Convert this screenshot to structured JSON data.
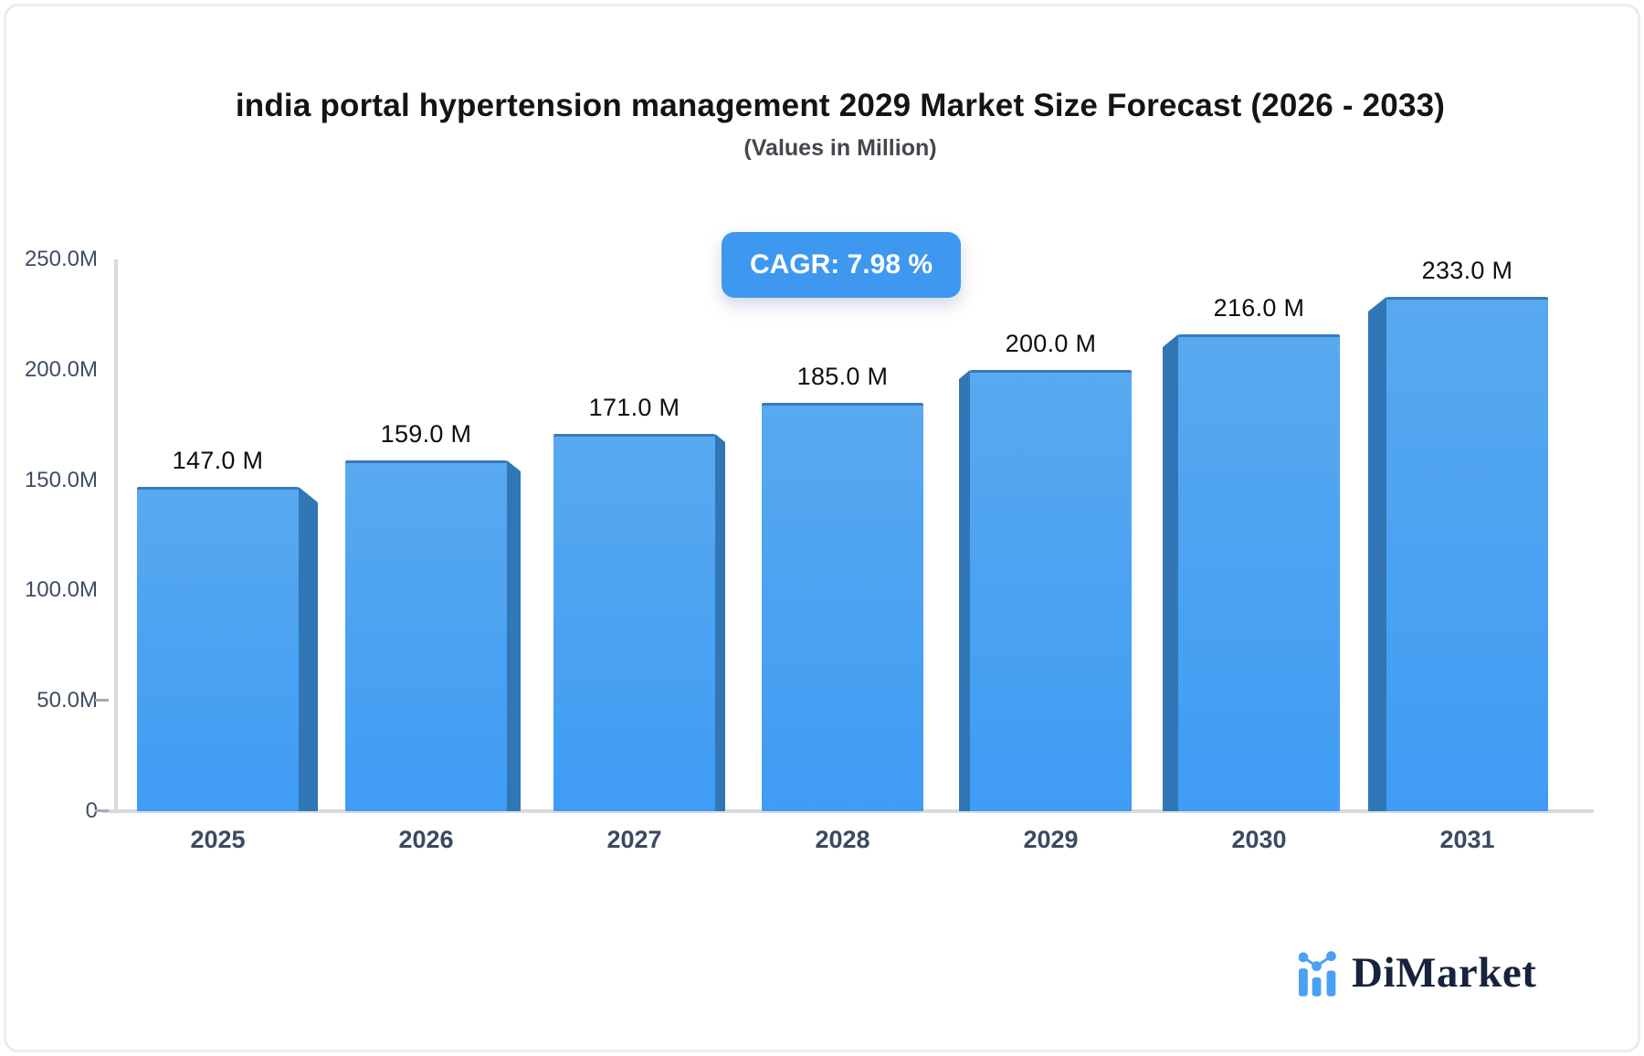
{
  "header": {
    "title": "india portal hypertension management 2029 Market Size Forecast (2026 - 2033)",
    "subtitle": "(Values in Million)",
    "cagr_label": "CAGR: 7.98 %"
  },
  "chart_data": {
    "type": "bar",
    "title": "india portal hypertension management 2029 Market Size Forecast (2026 - 2033)",
    "subtitle": "(Values in Million)",
    "unit": "Million",
    "categories": [
      "2025",
      "2026",
      "2027",
      "2028",
      "2029",
      "2030",
      "2031"
    ],
    "values": [
      147,
      159,
      171,
      185,
      200,
      216,
      233
    ],
    "value_labels": [
      "147.0 M",
      "159.0 M",
      "171.0 M",
      "185.0 M",
      "200.0 M",
      "216.0 M",
      "233.0 M"
    ],
    "cagr_percent": 7.98,
    "ylim": [
      0,
      250
    ],
    "ytick_values": [
      250,
      200,
      150,
      100,
      50,
      0
    ],
    "ytick_labels": [
      "250.0M",
      "200.0M",
      "150.0M",
      "100.0M",
      "50.0M",
      "0"
    ],
    "grid": false,
    "legend": "none"
  },
  "footer": {
    "logo_text": "DiMarket"
  },
  "colors": {
    "accent": "#3f98ef",
    "bar_face_top": "#58a9ef",
    "bar_face_bottom": "#3f9cf4",
    "bar_side": "#3176b6",
    "axis_line": "#d9dae0",
    "axis_text": "#3e4d63",
    "value_text": "#0e0e0e",
    "logo_navy": "#17233c",
    "logo_blue": "#4aa1f4"
  }
}
